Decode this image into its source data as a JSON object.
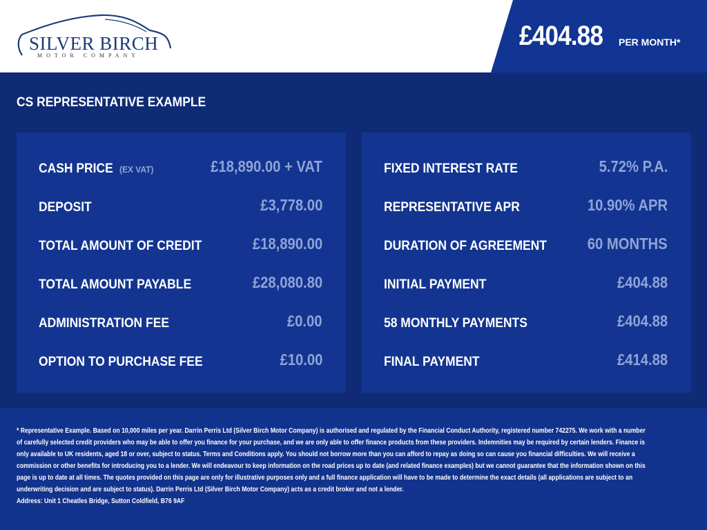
{
  "brand": {
    "name": "SILVER BIRCH",
    "subtitle": "MOTOR COMPANY"
  },
  "headline": {
    "price": "£404.88",
    "suffix": "PER MONTH*"
  },
  "section_title": "CS REPRESENTATIVE EXAMPLE",
  "left_panel": [
    {
      "label": "CASH PRICE",
      "note": "(EX VAT)",
      "value": "£18,890.00 + VAT"
    },
    {
      "label": "DEPOSIT",
      "value": "£3,778.00"
    },
    {
      "label": "TOTAL AMOUNT OF CREDIT",
      "value": "£18,890.00"
    },
    {
      "label": "TOTAL AMOUNT PAYABLE",
      "value": "£28,080.80"
    },
    {
      "label": "ADMINISTRATION FEE",
      "value": "£0.00"
    },
    {
      "label": "OPTION TO PURCHASE FEE",
      "value": "£10.00"
    }
  ],
  "right_panel": [
    {
      "label": "FIXED INTEREST RATE",
      "value": "5.72% P.A."
    },
    {
      "label": "REPRESENTATIVE APR",
      "value": "10.90% APR"
    },
    {
      "label": "DURATION OF AGREEMENT",
      "value": "60 MONTHS"
    },
    {
      "label": "INITIAL PAYMENT",
      "value": "£404.88"
    },
    {
      "label": "58 MONTHLY PAYMENTS",
      "value": "£404.88"
    },
    {
      "label": "FINAL PAYMENT",
      "value": "£414.88"
    }
  ],
  "disclaimer": "* Representative Example. Based on 10,000 miles per year. Darrin Perris Ltd (Silver Birch Motor Company) is authorised and regulated by the Financial Conduct Authority, registered number 742275. We work with a number of carefully selected credit providers who may be able to offer you finance for your purchase, and we are only able to offer finance products from these providers. Indemnities may be required by certain lenders. Finance is only available to UK residents, aged 18 or over, subject to status. Terms and Conditions apply. You should not borrow more than you can afford to repay as doing so can cause you financial difficulties. We will receive a commission or other benefits for introducing you to a lender. We will endeavour to keep information on the road prices up to date (and related finance examples) but we cannot guarantee that the information shown on this page is up to date at all times. The quotes provided on this page are only for illustrative purposes only and a full finance application will have to be made to determine the exact details (all applications are subject to an underwriting decision and are subject to status). Darrin Perris Ltd (Silver Birch Motor Company) acts as a credit broker and not a lender.",
  "address": "Address: Unit 1 Cheatles Bridge, Sutton Coldfield, B76 9AF",
  "colors": {
    "background": "#0f2b76",
    "panel": "#133591",
    "value": "#8fa3d8",
    "header": "#ffffff"
  }
}
